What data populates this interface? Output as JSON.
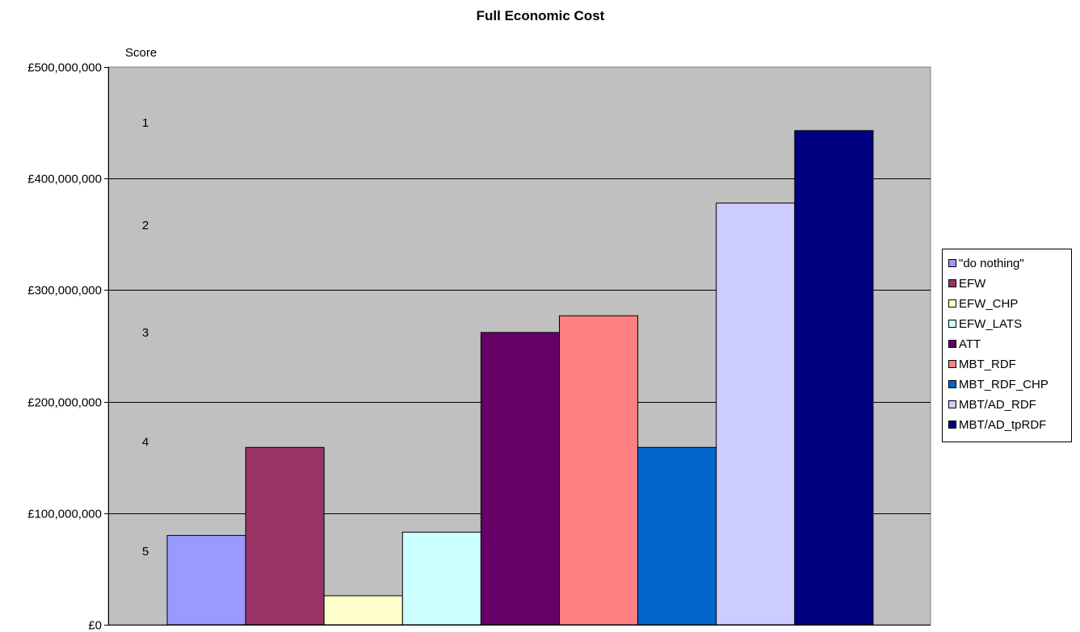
{
  "chart_data": {
    "type": "bar",
    "title": "Full Economic Cost",
    "xlabel": "",
    "ylabel": "",
    "categories": [
      "\"do nothing\"",
      "EFW",
      "EFW_CHP",
      "EFW_LATS",
      "ATT",
      "MBT_RDF",
      "MBT_RDF_CHP",
      "MBT/AD_RDF",
      "MBT/AD_tpRDF"
    ],
    "values": [
      80000000,
      159000000,
      26000000,
      83000000,
      262000000,
      277000000,
      159000000,
      378000000,
      443000000
    ],
    "colors": [
      "#9999FF",
      "#993366",
      "#FFFFCC",
      "#CCFFFF",
      "#660066",
      "#FF8080",
      "#0066CC",
      "#CCCCFF",
      "#000080"
    ],
    "ylim": [
      0,
      500000000
    ],
    "y_ticks": [
      0,
      100000000,
      200000000,
      300000000,
      400000000,
      500000000
    ],
    "y_tick_labels": [
      "£0",
      "£100,000,000",
      "£200,000,000",
      "£300,000,000",
      "£400,000,000",
      "£500,000,000"
    ],
    "grid": true,
    "plot_background": "#C0C0C0",
    "legend_position": "right",
    "score_label": "Score",
    "score_labels": [
      "1",
      "2",
      "3",
      "4",
      "5"
    ],
    "score_values": [
      450000000,
      358000000,
      262000000,
      164000000,
      66000000
    ]
  }
}
